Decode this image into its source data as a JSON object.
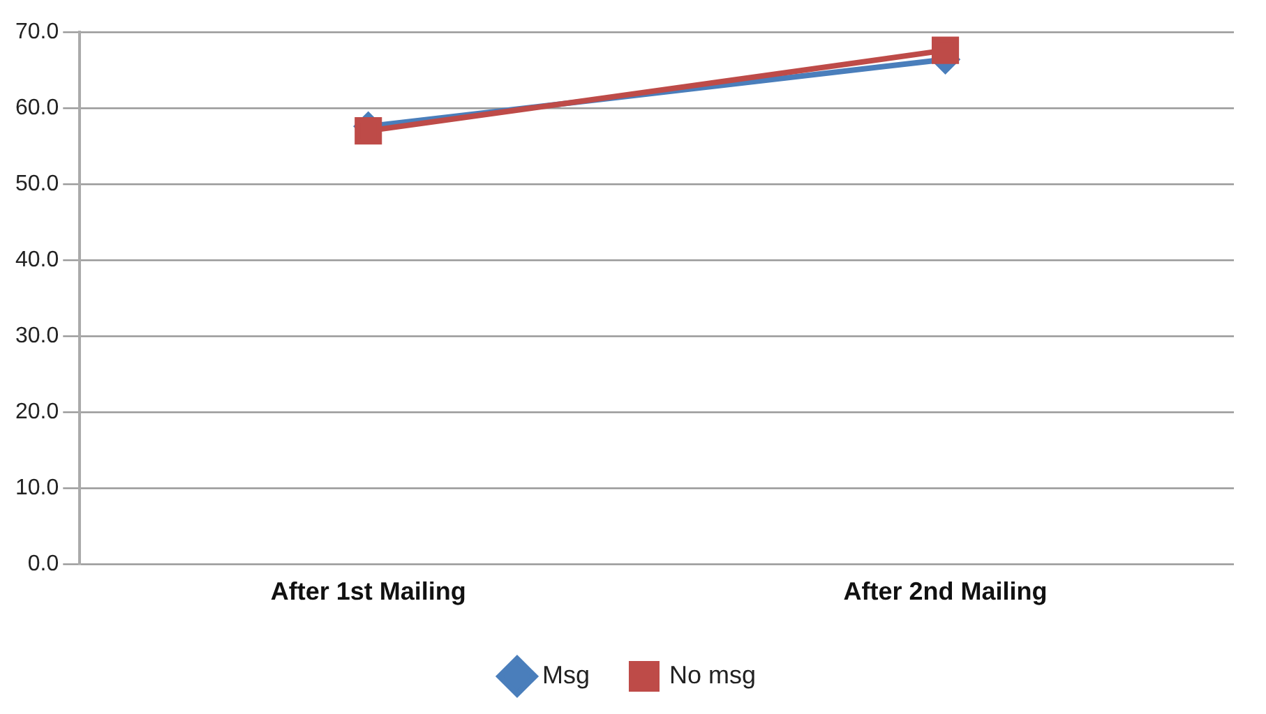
{
  "chart_data": {
    "type": "line",
    "categories": [
      "After 1st Mailing",
      "After 2nd Mailing"
    ],
    "series": [
      {
        "name": "Msg",
        "color": "#4a7ebb",
        "values": [
          57.6,
          66.4
        ],
        "marker": "diamond"
      },
      {
        "name": "No msg",
        "color": "#be4b48",
        "values": [
          57.0,
          67.6
        ],
        "marker": "square"
      }
    ],
    "ylim": [
      0,
      70
    ],
    "yticks": [
      {
        "value": 0,
        "label": "0.0"
      },
      {
        "value": 10,
        "label": "10.0"
      },
      {
        "value": 20,
        "label": "20.0"
      },
      {
        "value": 30,
        "label": "30.0"
      },
      {
        "value": 40,
        "label": "40.0"
      },
      {
        "value": 50,
        "label": "50.0"
      },
      {
        "value": 60,
        "label": "60.0"
      },
      {
        "value": 70,
        "label": "70.0"
      }
    ],
    "grid": "y",
    "legend": "bottom"
  }
}
